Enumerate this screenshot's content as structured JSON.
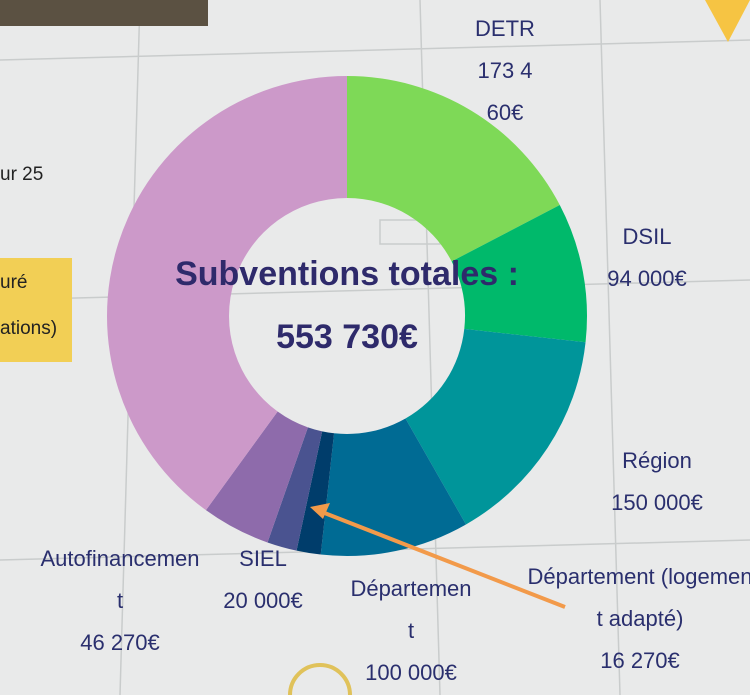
{
  "chart_data": {
    "type": "donut",
    "categories": [
      "DETR",
      "DSIL",
      "Région",
      "Départemen t",
      "Département (logement adapté)",
      "SIEL",
      "Autofinancemen t",
      null
    ],
    "values": [
      173460,
      94000,
      150000,
      100000,
      16270,
      20000,
      46270,
      400000
    ],
    "value_labels": [
      "173 460€",
      "94 000€",
      "150 000€",
      "100 000€",
      "16 270€",
      "20 000€",
      "46 270€",
      null
    ],
    "colors": [
      "#7ed957",
      "#00b96b",
      "#00959a",
      "#006b94",
      "#003d6b",
      "#4a5390",
      "#8e6bab",
      "#cc99c9"
    ],
    "center_title": "Subventions totales :",
    "center_value": "553 730€"
  },
  "side_texts": [
    "ur 25",
    "uré",
    "ations)"
  ]
}
